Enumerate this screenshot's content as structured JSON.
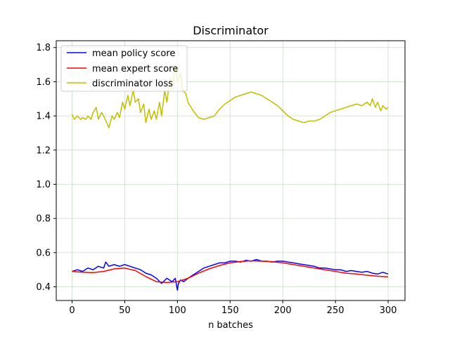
{
  "chart_data": {
    "type": "line",
    "title": "Discriminator",
    "xlabel": "n batches",
    "ylabel": "",
    "xlim": [
      -15,
      316
    ],
    "ylim": [
      0.32,
      1.84
    ],
    "xticks": [
      0,
      50,
      100,
      150,
      200,
      250,
      300
    ],
    "yticks": [
      0.4,
      0.6,
      0.8,
      1.0,
      1.2,
      1.4,
      1.6,
      1.8
    ],
    "xtick_labels": [
      "0",
      "50",
      "100",
      "150",
      "200",
      "250",
      "300"
    ],
    "ytick_labels": [
      "0.4",
      "0.6",
      "0.8",
      "1.0",
      "1.2",
      "1.4",
      "1.6",
      "1.8"
    ],
    "grid": true,
    "grid_color": "#c8dcc8",
    "legend_position": "top-left",
    "series": [
      {
        "name": "mean policy score",
        "color": "#0000ff",
        "x": [
          0,
          5,
          10,
          15,
          20,
          25,
          30,
          32,
          35,
          40,
          45,
          50,
          55,
          60,
          65,
          70,
          75,
          80,
          85,
          90,
          95,
          98,
          100,
          101,
          103,
          106,
          110,
          115,
          120,
          125,
          130,
          135,
          140,
          145,
          150,
          155,
          160,
          165,
          170,
          175,
          180,
          185,
          190,
          195,
          200,
          205,
          210,
          215,
          220,
          225,
          230,
          235,
          240,
          245,
          250,
          255,
          260,
          265,
          270,
          275,
          280,
          285,
          290,
          295,
          300
        ],
        "y": [
          0.49,
          0.5,
          0.49,
          0.51,
          0.5,
          0.52,
          0.51,
          0.545,
          0.52,
          0.53,
          0.52,
          0.53,
          0.52,
          0.51,
          0.5,
          0.48,
          0.47,
          0.45,
          0.42,
          0.45,
          0.43,
          0.45,
          0.38,
          0.42,
          0.44,
          0.43,
          0.45,
          0.47,
          0.49,
          0.51,
          0.52,
          0.53,
          0.54,
          0.54,
          0.55,
          0.55,
          0.545,
          0.555,
          0.55,
          0.56,
          0.55,
          0.55,
          0.545,
          0.55,
          0.55,
          0.545,
          0.54,
          0.535,
          0.53,
          0.525,
          0.52,
          0.51,
          0.51,
          0.505,
          0.5,
          0.5,
          0.49,
          0.495,
          0.49,
          0.485,
          0.49,
          0.48,
          0.475,
          0.485,
          0.475
        ]
      },
      {
        "name": "mean expert score",
        "color": "#ff0000",
        "x": [
          0,
          10,
          20,
          30,
          40,
          50,
          60,
          70,
          80,
          90,
          100,
          110,
          120,
          130,
          140,
          150,
          160,
          170,
          180,
          190,
          200,
          210,
          220,
          230,
          240,
          250,
          260,
          270,
          280,
          290,
          300
        ],
        "y": [
          0.49,
          0.485,
          0.483,
          0.49,
          0.505,
          0.51,
          0.495,
          0.46,
          0.43,
          0.425,
          0.43,
          0.45,
          0.48,
          0.505,
          0.525,
          0.54,
          0.548,
          0.552,
          0.55,
          0.547,
          0.54,
          0.53,
          0.52,
          0.51,
          0.5,
          0.49,
          0.48,
          0.475,
          0.468,
          0.462,
          0.458
        ]
      },
      {
        "name": "discriminator loss",
        "color": "#bfbf00",
        "x": [
          0,
          2,
          5,
          8,
          10,
          13,
          15,
          18,
          20,
          23,
          25,
          28,
          30,
          33,
          35,
          38,
          40,
          43,
          45,
          48,
          50,
          53,
          55,
          58,
          60,
          63,
          65,
          68,
          70,
          73,
          75,
          78,
          80,
          83,
          85,
          88,
          90,
          93,
          95,
          98,
          100,
          103,
          105,
          108,
          110,
          115,
          120,
          125,
          130,
          135,
          140,
          145,
          150,
          155,
          160,
          165,
          170,
          175,
          180,
          185,
          190,
          195,
          200,
          205,
          210,
          215,
          220,
          225,
          230,
          235,
          240,
          245,
          250,
          255,
          260,
          265,
          270,
          275,
          280,
          283,
          285,
          288,
          290,
          293,
          295,
          298,
          300
        ],
        "y": [
          1.41,
          1.38,
          1.4,
          1.38,
          1.39,
          1.38,
          1.4,
          1.38,
          1.42,
          1.45,
          1.38,
          1.42,
          1.4,
          1.36,
          1.33,
          1.4,
          1.38,
          1.42,
          1.39,
          1.48,
          1.44,
          1.52,
          1.46,
          1.55,
          1.48,
          1.5,
          1.42,
          1.47,
          1.36,
          1.44,
          1.38,
          1.43,
          1.38,
          1.48,
          1.4,
          1.55,
          1.48,
          1.62,
          1.56,
          1.7,
          1.6,
          1.65,
          1.55,
          1.53,
          1.48,
          1.43,
          1.39,
          1.38,
          1.39,
          1.4,
          1.44,
          1.47,
          1.49,
          1.51,
          1.52,
          1.53,
          1.54,
          1.53,
          1.52,
          1.5,
          1.48,
          1.46,
          1.43,
          1.4,
          1.38,
          1.37,
          1.36,
          1.37,
          1.37,
          1.38,
          1.4,
          1.42,
          1.43,
          1.44,
          1.45,
          1.46,
          1.47,
          1.46,
          1.48,
          1.46,
          1.5,
          1.45,
          1.48,
          1.43,
          1.46,
          1.44,
          1.45
        ]
      }
    ]
  }
}
